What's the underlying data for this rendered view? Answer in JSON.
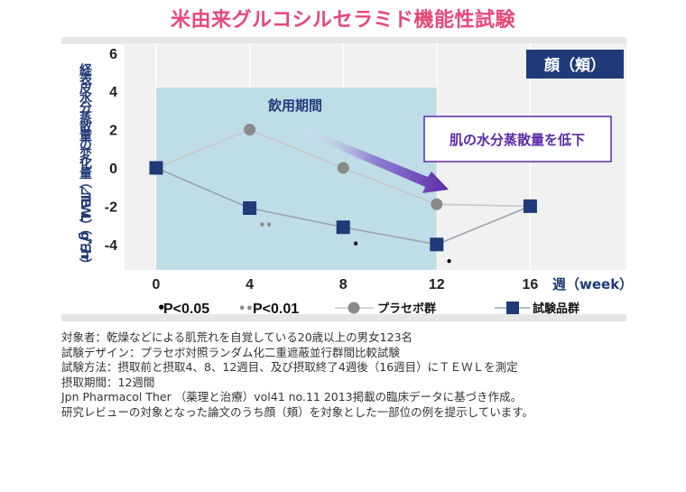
{
  "title": "米由来グルコシルセラミド機能性試験",
  "chart_data": {
    "type": "line",
    "panel_label": "顔（頬）",
    "ylabel": "経表皮水分蒸散量の変化量（⊿TEWL）（g/㎡/hr）",
    "xlabel": "週（week）",
    "x": [
      0,
      4,
      8,
      12,
      16
    ],
    "x_tick_labels": [
      "0",
      "4",
      "8",
      "12",
      "16"
    ],
    "ylim": [
      -5.5,
      6.2
    ],
    "y_ticks": [
      -4,
      -2,
      0,
      2,
      4,
      6
    ],
    "shaded_region": {
      "label": "飲用期間",
      "x_start": 0,
      "x_end": 12
    },
    "annotation": "肌の水分蒸散量を低下",
    "series": [
      {
        "name": "プラセボ群",
        "marker": "circle",
        "color": "#8a8a8a",
        "line_color": "#c8c8c8",
        "x": [
          0,
          4,
          8,
          12,
          16
        ],
        "values": [
          0,
          2,
          0,
          -1.9,
          -2.0
        ]
      },
      {
        "name": "試験品群",
        "marker": "square",
        "color": "#1f3a78",
        "line_color": "#9aa3b0",
        "x": [
          0,
          4,
          8,
          12,
          16
        ],
        "values": [
          0,
          -2.1,
          -3.1,
          -4.0,
          -2.0
        ]
      }
    ],
    "significance": [
      {
        "x": 4,
        "mark": "••"
      },
      {
        "x": 8,
        "mark": "•"
      },
      {
        "x": 12,
        "mark": "•"
      }
    ],
    "legend": [
      {
        "mark": "•",
        "label": "P<0.05"
      },
      {
        "mark": "••",
        "label": "P<0.01"
      },
      {
        "series": "プラセボ群"
      },
      {
        "series": "試験品群"
      }
    ]
  },
  "notes": [
    "対象者：乾燥などによる肌荒れを自覚している20歳以上の男女123名",
    "試験デザイン：プラセボ対照ランダム化二重遮蔽並行群間比較試験",
    "試験方法：摂取前と摂取4、8、12週目、及び摂取終了4週後（16週目）にＴＥＷＬを測定",
    "摂取期間：12週間",
    "Jpn Pharmacol Ther （薬理と治療）vol41 no.11 2013掲載の臨床データに基づき作成。",
    "研究レビューの対象となった論文のうち顔（頬）を対象とした一部位の例を提示しています。"
  ]
}
